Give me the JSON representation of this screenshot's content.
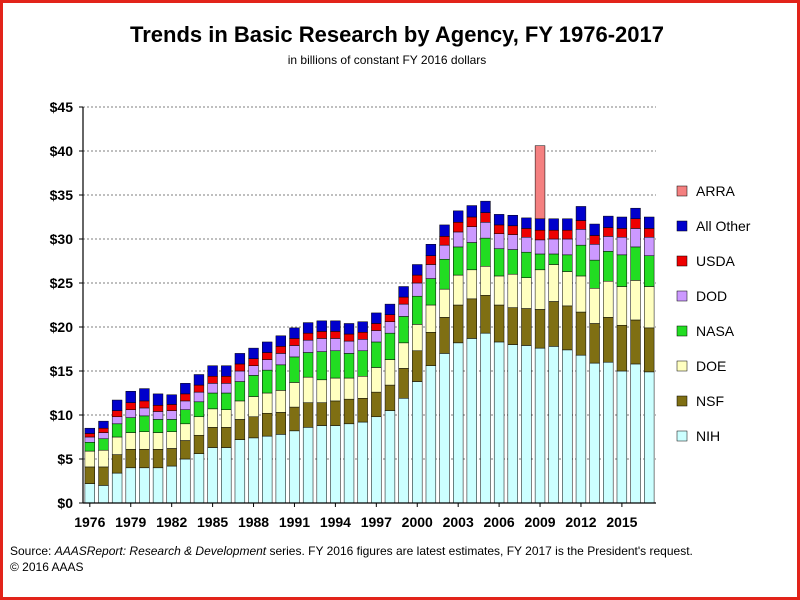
{
  "chart_data": {
    "type": "bar",
    "stacked": true,
    "title": "Trends in Basic Research by Agency, FY 1976-2017",
    "subtitle": "in billions of constant FY 2016 dollars",
    "ylim": [
      0,
      45
    ],
    "yticks": [
      "$0",
      "$5",
      "$10",
      "$15",
      "$20",
      "$25",
      "$30",
      "$35",
      "$40",
      "$45"
    ],
    "xtick_labels": [
      "1976",
      "1979",
      "1982",
      "1985",
      "1988",
      "1991",
      "1994",
      "1997",
      "2000",
      "2003",
      "2006",
      "2009",
      "2012",
      "2015"
    ],
    "categories": [
      1976,
      1977,
      1978,
      1979,
      1980,
      1981,
      1982,
      1983,
      1984,
      1985,
      1986,
      1987,
      1988,
      1989,
      1990,
      1991,
      1992,
      1993,
      1994,
      1995,
      1996,
      1997,
      1998,
      1999,
      2000,
      2001,
      2002,
      2003,
      2004,
      2005,
      2006,
      2007,
      2008,
      2009,
      2010,
      2011,
      2012,
      2013,
      2014,
      2015,
      2016,
      2017
    ],
    "grid": true,
    "legend_position": "right",
    "series": [
      {
        "name": "NIH",
        "color": "#ccffff",
        "values": [
          2.2,
          2.0,
          3.4,
          4.0,
          4.0,
          4.0,
          4.2,
          5.0,
          5.6,
          6.3,
          6.3,
          7.2,
          7.4,
          7.6,
          7.8,
          8.2,
          8.6,
          8.8,
          8.8,
          9.0,
          9.2,
          9.8,
          10.5,
          11.9,
          13.8,
          15.6,
          17.0,
          18.2,
          18.7,
          19.3,
          18.3,
          18.0,
          17.9,
          17.6,
          17.8,
          17.4,
          16.8,
          15.9,
          16.0,
          15.0,
          15.8,
          14.9
        ]
      },
      {
        "name": "NSF",
        "color": "#7f6f13",
        "values": [
          1.9,
          2.1,
          2.1,
          2.1,
          2.1,
          2.1,
          2.0,
          2.1,
          2.1,
          2.3,
          2.3,
          2.3,
          2.4,
          2.6,
          2.5,
          2.7,
          2.8,
          2.6,
          2.8,
          2.8,
          2.7,
          2.8,
          2.9,
          3.4,
          3.5,
          3.8,
          4.1,
          4.3,
          4.5,
          4.3,
          4.2,
          4.2,
          4.2,
          4.4,
          5.1,
          5.0,
          4.9,
          4.5,
          5.1,
          5.2,
          5.0,
          5.0
        ]
      },
      {
        "name": "DOE",
        "color": "#ffffc0",
        "values": [
          1.8,
          1.9,
          2.0,
          1.9,
          2.0,
          1.9,
          1.9,
          1.9,
          2.1,
          2.1,
          2.0,
          2.1,
          2.3,
          2.3,
          2.5,
          2.8,
          2.9,
          2.6,
          2.6,
          2.4,
          2.5,
          2.8,
          2.9,
          2.9,
          3.0,
          3.1,
          3.2,
          3.4,
          3.3,
          3.3,
          3.3,
          3.8,
          3.5,
          4.5,
          4.2,
          3.9,
          4.1,
          4.0,
          4.1,
          4.4,
          4.5,
          4.7
        ]
      },
      {
        "name": "NASA",
        "color": "#22dd22",
        "values": [
          1.0,
          1.3,
          1.5,
          1.7,
          1.8,
          1.5,
          1.4,
          1.6,
          1.7,
          1.8,
          1.9,
          2.2,
          2.4,
          2.6,
          2.9,
          2.9,
          2.8,
          3.2,
          3.1,
          2.8,
          2.9,
          2.9,
          3.0,
          3.0,
          3.2,
          3.0,
          3.4,
          3.2,
          3.1,
          3.2,
          3.1,
          2.8,
          2.9,
          1.8,
          1.2,
          1.9,
          3.5,
          3.2,
          3.4,
          3.6,
          3.8,
          3.5
        ]
      },
      {
        "name": "DOD",
        "color": "#cc99ff",
        "values": [
          0.6,
          0.7,
          0.8,
          0.9,
          0.9,
          0.9,
          1.0,
          1.0,
          1.1,
          1.1,
          1.1,
          1.2,
          1.1,
          1.2,
          1.3,
          1.3,
          1.4,
          1.5,
          1.4,
          1.4,
          1.3,
          1.3,
          1.3,
          1.4,
          1.5,
          1.6,
          1.6,
          1.7,
          1.8,
          1.8,
          1.7,
          1.7,
          1.7,
          1.6,
          1.7,
          1.8,
          1.8,
          1.8,
          1.7,
          2.0,
          2.1,
          2.1
        ]
      },
      {
        "name": "USDA",
        "color": "#ee0000",
        "values": [
          0.4,
          0.5,
          0.7,
          0.8,
          0.8,
          0.7,
          0.7,
          0.8,
          0.8,
          0.8,
          0.8,
          0.8,
          0.8,
          0.8,
          0.8,
          0.8,
          0.8,
          0.8,
          0.8,
          0.8,
          0.8,
          0.8,
          0.8,
          0.8,
          0.9,
          1.0,
          1.0,
          1.1,
          1.1,
          1.1,
          1.0,
          1.0,
          1.0,
          1.1,
          1.0,
          1.0,
          1.0,
          1.0,
          1.0,
          1.0,
          1.1,
          1.0
        ]
      },
      {
        "name": "All Other",
        "color": "#0000cc",
        "values": [
          0.6,
          0.8,
          1.2,
          1.3,
          1.4,
          1.3,
          1.1,
          1.2,
          1.2,
          1.2,
          1.2,
          1.2,
          1.2,
          1.2,
          1.2,
          1.2,
          1.2,
          1.2,
          1.2,
          1.2,
          1.2,
          1.2,
          1.2,
          1.2,
          1.2,
          1.3,
          1.3,
          1.3,
          1.3,
          1.3,
          1.2,
          1.2,
          1.2,
          1.3,
          1.3,
          1.3,
          1.6,
          1.3,
          1.3,
          1.3,
          1.2,
          1.3
        ]
      },
      {
        "name": "ARRA",
        "color": "#f48080",
        "values": [
          0,
          0,
          0,
          0,
          0,
          0,
          0,
          0,
          0,
          0,
          0,
          0,
          0,
          0,
          0,
          0,
          0,
          0,
          0,
          0,
          0,
          0,
          0,
          0,
          0,
          0,
          0,
          0,
          0,
          0,
          0,
          0,
          0,
          8.3,
          0,
          0,
          0,
          0,
          0,
          0,
          0,
          0
        ]
      }
    ]
  },
  "legend_order": [
    "ARRA",
    "All Other",
    "USDA",
    "DOD",
    "NASA",
    "DOE",
    "NSF",
    "NIH"
  ],
  "source": {
    "prefix": "Source:  ",
    "report": "AAASReport: Research & Development",
    "rest": " series.  FY 2016 figures are latest estimates, FY 2017 is the President's request.",
    "copyright": "© 2016 AAAS"
  }
}
